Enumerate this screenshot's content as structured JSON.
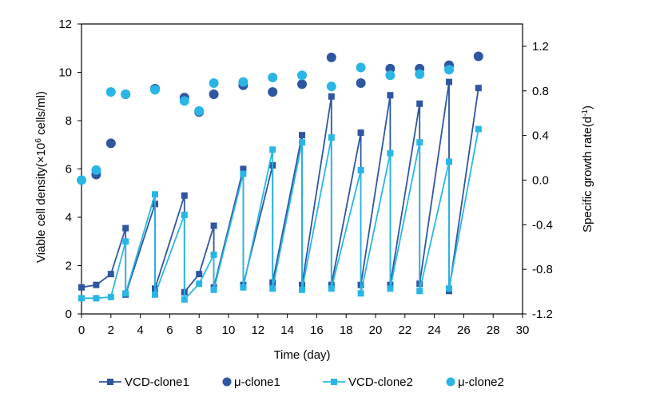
{
  "chart_data": {
    "type": "line",
    "xlabel": "Time (day)",
    "ylabel_left_prefix": "Viable cell density(×10",
    "ylabel_left_sup": "6",
    "ylabel_left_suffix": " cells/ml)",
    "ylabel_right_prefix": "Specific growth rate(d",
    "ylabel_right_sup": "-1",
    "ylabel_right_suffix": ")",
    "xlim": [
      0,
      30
    ],
    "ylim_left": [
      0,
      12
    ],
    "ylim_right": [
      -1.2,
      1.4
    ],
    "xticks": [
      "0",
      "2",
      "4",
      "6",
      "8",
      "10",
      "12",
      "14",
      "16",
      "18",
      "20",
      "22",
      "24",
      "26",
      "28",
      "30"
    ],
    "yticks_left": [
      "0",
      "2",
      "4",
      "6",
      "8",
      "10",
      "12"
    ],
    "yticks_right": [
      "-1.2",
      "-0.8",
      "-0.4",
      "0.0",
      "0.4",
      "0.8",
      "1.2"
    ],
    "legend_position": "bottom",
    "series": [
      {
        "name": "VCD-clone1",
        "type": "line-square",
        "axis": "left",
        "color": "#2e56a1",
        "x": [
          0,
          1,
          2,
          3,
          3,
          5,
          5,
          7,
          7,
          8,
          9,
          9,
          11,
          11,
          13,
          13,
          15,
          15,
          17,
          17,
          19,
          19,
          21,
          21,
          23,
          23,
          25,
          25,
          27
        ],
        "y": [
          1.1,
          1.2,
          1.65,
          3.55,
          0.8,
          4.55,
          1.05,
          4.9,
          0.9,
          1.65,
          3.65,
          1.1,
          6.0,
          1.2,
          6.15,
          1.3,
          7.4,
          1.2,
          9.0,
          1.2,
          7.5,
          1.2,
          9.05,
          1.2,
          8.7,
          1.25,
          9.6,
          0.95,
          9.35
        ]
      },
      {
        "name": "μ-clone1",
        "type": "scatter-circle",
        "axis": "right",
        "color": "#2e56a1",
        "x": [
          1,
          2,
          3,
          5,
          7,
          8,
          9,
          11,
          13,
          15,
          17,
          19,
          21,
          23,
          25,
          27
        ],
        "y": [
          0.05,
          0.33,
          0.77,
          0.82,
          0.74,
          0.61,
          0.77,
          0.85,
          0.79,
          0.86,
          1.1,
          0.87,
          1.0,
          1.0,
          1.03,
          1.11
        ]
      },
      {
        "name": "VCD-clone2",
        "type": "line-square",
        "axis": "left",
        "color": "#29b6e6",
        "x": [
          0,
          1,
          2,
          3,
          3,
          5,
          5,
          7,
          7,
          8,
          9,
          9,
          11,
          11,
          13,
          13,
          15,
          15,
          17,
          17,
          19,
          19,
          21,
          21,
          23,
          23,
          25,
          25,
          27
        ],
        "y": [
          0.65,
          0.65,
          0.7,
          3.0,
          0.85,
          4.95,
          0.8,
          4.1,
          0.6,
          1.25,
          2.45,
          1.0,
          5.8,
          1.1,
          6.8,
          1.05,
          7.1,
          1.0,
          7.3,
          1.05,
          5.95,
          0.85,
          6.65,
          1.05,
          7.1,
          0.95,
          6.3,
          1.05,
          7.65
        ]
      },
      {
        "name": "μ-clone2",
        "type": "scatter-circle",
        "axis": "right",
        "color": "#29b6e6",
        "x": [
          0,
          1,
          2,
          3,
          5,
          7,
          8,
          9,
          11,
          13,
          15,
          17,
          19,
          21,
          23,
          25
        ],
        "y": [
          0.0,
          0.09,
          0.79,
          0.77,
          0.81,
          0.71,
          0.62,
          0.87,
          0.88,
          0.92,
          0.94,
          0.84,
          1.01,
          0.94,
          0.95,
          0.99
        ]
      }
    ]
  }
}
